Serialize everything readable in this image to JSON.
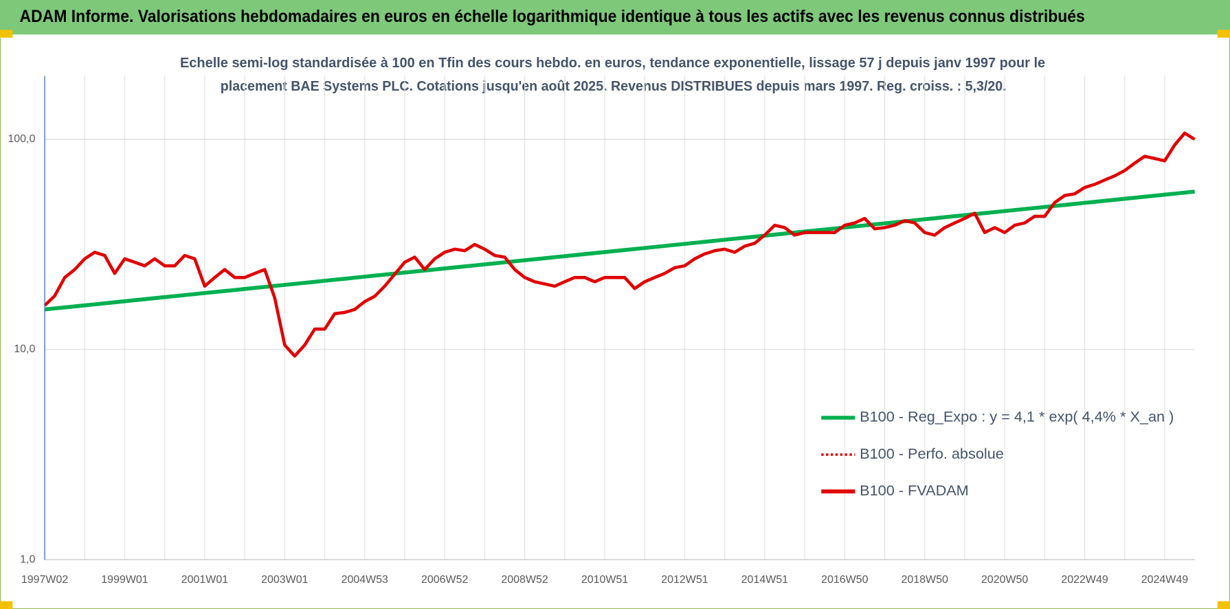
{
  "chart_data": {
    "type": "line",
    "title": "ADAM Informe. Valorisations hebdomadaires en euros en échelle logarithmique identique à tous les actifs avec les revenus connus distribués",
    "subtitle": [
      "Echelle semi-log standardisée à 100 en Tfin des cours hebdo. en euros, tendance exponentielle, lissage 57 j depuis janv 1997 pour le",
      "placement BAE Systems PLC. Cotations jusqu'en août 2025. Revenus DISTRIBUES depuis mars 1997. Reg. croiss. : 5,3/20."
    ],
    "log_scale": true,
    "grid": true,
    "legend": "lower right",
    "ylim": [
      1,
      200
    ],
    "yticks": [
      {
        "value": 1,
        "label": "1,0"
      },
      {
        "value": 10,
        "label": "10,0"
      },
      {
        "value": 100,
        "label": "100,0"
      }
    ],
    "categories": [
      "1997W02",
      null,
      null,
      null,
      null,
      null,
      null,
      null,
      "1999W01",
      null,
      null,
      null,
      null,
      null,
      null,
      null,
      "2001W01",
      null,
      null,
      null,
      null,
      null,
      null,
      null,
      "2003W01",
      null,
      null,
      null,
      null,
      null,
      null,
      null,
      "2004W53",
      null,
      null,
      null,
      null,
      null,
      null,
      null,
      "2006W52",
      null,
      null,
      null,
      null,
      null,
      null,
      null,
      "2008W52",
      null,
      null,
      null,
      null,
      null,
      null,
      null,
      "2010W51",
      null,
      null,
      null,
      null,
      null,
      null,
      null,
      "2012W51",
      null,
      null,
      null,
      null,
      null,
      null,
      null,
      "2014W51",
      null,
      null,
      null,
      null,
      null,
      null,
      null,
      "2016W50",
      null,
      null,
      null,
      null,
      null,
      null,
      null,
      "2018W50",
      null,
      null,
      null,
      null,
      null,
      null,
      null,
      "2020W50",
      null,
      null,
      null,
      null,
      null,
      null,
      null,
      "2022W49",
      null,
      null,
      null,
      null,
      null,
      null,
      null,
      "2024W49",
      null,
      null,
      null
    ],
    "series": [
      {
        "name": "B100 - Reg_Expo : y = 4,1 * exp( 4,4% *  X_an )",
        "color": "#00b050",
        "style": "solid",
        "width": 5,
        "values": [
          15.5,
          15.68,
          15.85,
          16.03,
          16.21,
          16.39,
          16.58,
          16.77,
          16.96,
          17.15,
          17.35,
          17.54,
          17.74,
          17.94,
          18.14,
          18.35,
          18.55,
          18.76,
          18.97,
          19.18,
          19.4,
          19.62,
          19.84,
          20.07,
          20.29,
          20.52,
          20.75,
          20.98,
          21.22,
          21.46,
          21.7,
          21.95,
          22.2,
          22.45,
          22.7,
          22.96,
          23.22,
          23.48,
          23.75,
          24.01,
          24.29,
          24.56,
          24.84,
          25.12,
          25.4,
          25.69,
          25.98,
          26.27,
          26.57,
          26.87,
          27.17,
          27.48,
          27.79,
          28.1,
          28.42,
          28.74,
          29.07,
          29.4,
          29.73,
          30.06,
          30.4,
          30.75,
          31.09,
          31.45,
          31.8,
          32.16,
          32.52,
          32.89,
          33.26,
          33.64,
          34.01,
          34.4,
          34.79,
          35.18,
          35.58,
          35.98,
          36.39,
          36.8,
          37.21,
          37.63,
          38.06,
          38.49,
          38.92,
          39.36,
          39.81,
          40.26,
          40.71,
          41.17,
          41.64,
          42.11,
          42.59,
          43.06,
          43.55,
          44.04,
          44.54,
          45.04,
          45.55,
          46.06,
          46.58,
          47.11,
          47.64,
          48.18,
          48.72,
          49.27,
          49.83,
          50.39,
          50.96,
          51.53,
          52.12,
          52.71,
          53.3,
          53.9,
          54.52,
          55.13,
          55.76,
          56.39
        ]
      },
      {
        "name": "B100 - Perfo. absolue",
        "color": "#e00000",
        "style": "dotted",
        "width": 3,
        "values": [
          16.2,
          18,
          22,
          24,
          27,
          29,
          28,
          23,
          27,
          26,
          25,
          27,
          25,
          25,
          28,
          27,
          20,
          22,
          24,
          22,
          22,
          23,
          24,
          17.6,
          10.5,
          9.3,
          10.5,
          12.5,
          12.5,
          14.8,
          15,
          15.5,
          16.9,
          17.9,
          20,
          22.8,
          26,
          27.5,
          24,
          27,
          29,
          30,
          29.5,
          31.6,
          30,
          28,
          27.5,
          24,
          22,
          21,
          20.5,
          20,
          21,
          22,
          22,
          21,
          22,
          22,
          22,
          19.5,
          21,
          22,
          23,
          24.5,
          25,
          27,
          28.5,
          29.5,
          30,
          29,
          31,
          32,
          35,
          39,
          38,
          35,
          36,
          36,
          36,
          36,
          39,
          40,
          42,
          37.5,
          38,
          39,
          41,
          40,
          36,
          35,
          38,
          40,
          42,
          44.5,
          36,
          38,
          36,
          39,
          40,
          43,
          43,
          50,
          54,
          55,
          59,
          61,
          64,
          67,
          71,
          77,
          83,
          81,
          79,
          94,
          107,
          100
        ]
      },
      {
        "name": "B100 - FVADAM",
        "color": "#e00000",
        "style": "solid",
        "width": 4,
        "values": [
          16.2,
          18,
          22,
          24,
          27,
          29,
          28,
          23,
          27,
          26,
          25,
          27,
          25,
          25,
          28,
          27,
          20,
          22,
          24,
          22,
          22,
          23,
          24,
          17.6,
          10.5,
          9.3,
          10.5,
          12.5,
          12.5,
          14.8,
          15,
          15.5,
          16.9,
          17.9,
          20,
          22.8,
          26,
          27.5,
          24,
          27,
          29,
          30,
          29.5,
          31.6,
          30,
          28,
          27.5,
          24,
          22,
          21,
          20.5,
          20,
          21,
          22,
          22,
          21,
          22,
          22,
          22,
          19.5,
          21,
          22,
          23,
          24.5,
          25,
          27,
          28.5,
          29.5,
          30,
          29,
          31,
          32,
          35,
          39,
          38,
          35,
          36,
          36,
          36,
          36,
          39,
          40,
          42,
          37.5,
          38,
          39,
          41,
          40,
          36,
          35,
          38,
          40,
          42,
          44.5,
          36,
          38,
          36,
          39,
          40,
          43,
          43,
          50,
          54,
          55,
          59,
          61,
          64,
          67,
          71,
          77,
          83,
          81,
          79,
          94,
          107,
          100
        ]
      }
    ]
  }
}
